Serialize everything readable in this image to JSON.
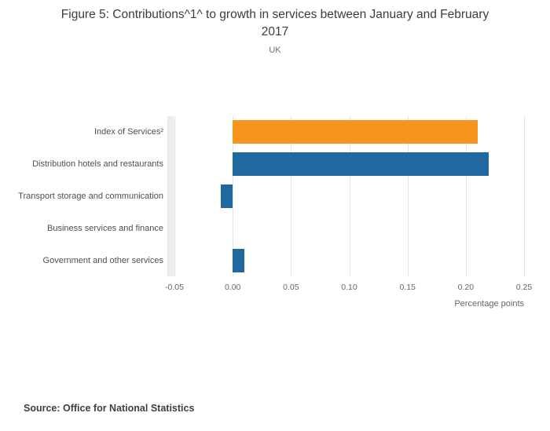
{
  "title": "Figure 5: Contributions^1^ to growth in services between January and February 2017",
  "subtitle": "UK",
  "source": "Source: Office for National Statistics",
  "colors": {
    "highlight_bar": "#f79420",
    "default_bar": "#2068a0",
    "gridline": "#e2e2e2",
    "axis_band": "#ececec"
  },
  "chart_data": {
    "type": "bar",
    "orientation": "horizontal",
    "title": "Figure 5: Contributions^1^ to growth in services between January and February 2017",
    "subtitle": "UK",
    "categories": [
      "Index of Services²",
      "Distribution hotels and restaurants",
      "Transport storage and communication",
      "Business services and finance",
      "Government and other services"
    ],
    "values": [
      0.21,
      0.22,
      -0.01,
      0.0,
      0.01
    ],
    "bar_colors": [
      "#f79420",
      "#2068a0",
      "#2068a0",
      "#2068a0",
      "#2068a0"
    ],
    "xlabel": "Percentage points",
    "ylabel": "",
    "xlim": [
      -0.05,
      0.25
    ],
    "xticks": [
      -0.05,
      0.0,
      0.05,
      0.1,
      0.15,
      0.2,
      0.25
    ],
    "xtick_labels": [
      "-0.05",
      "0.00",
      "0.05",
      "0.10",
      "0.15",
      "0.20",
      "0.25"
    ],
    "grid": true,
    "legend": false
  }
}
